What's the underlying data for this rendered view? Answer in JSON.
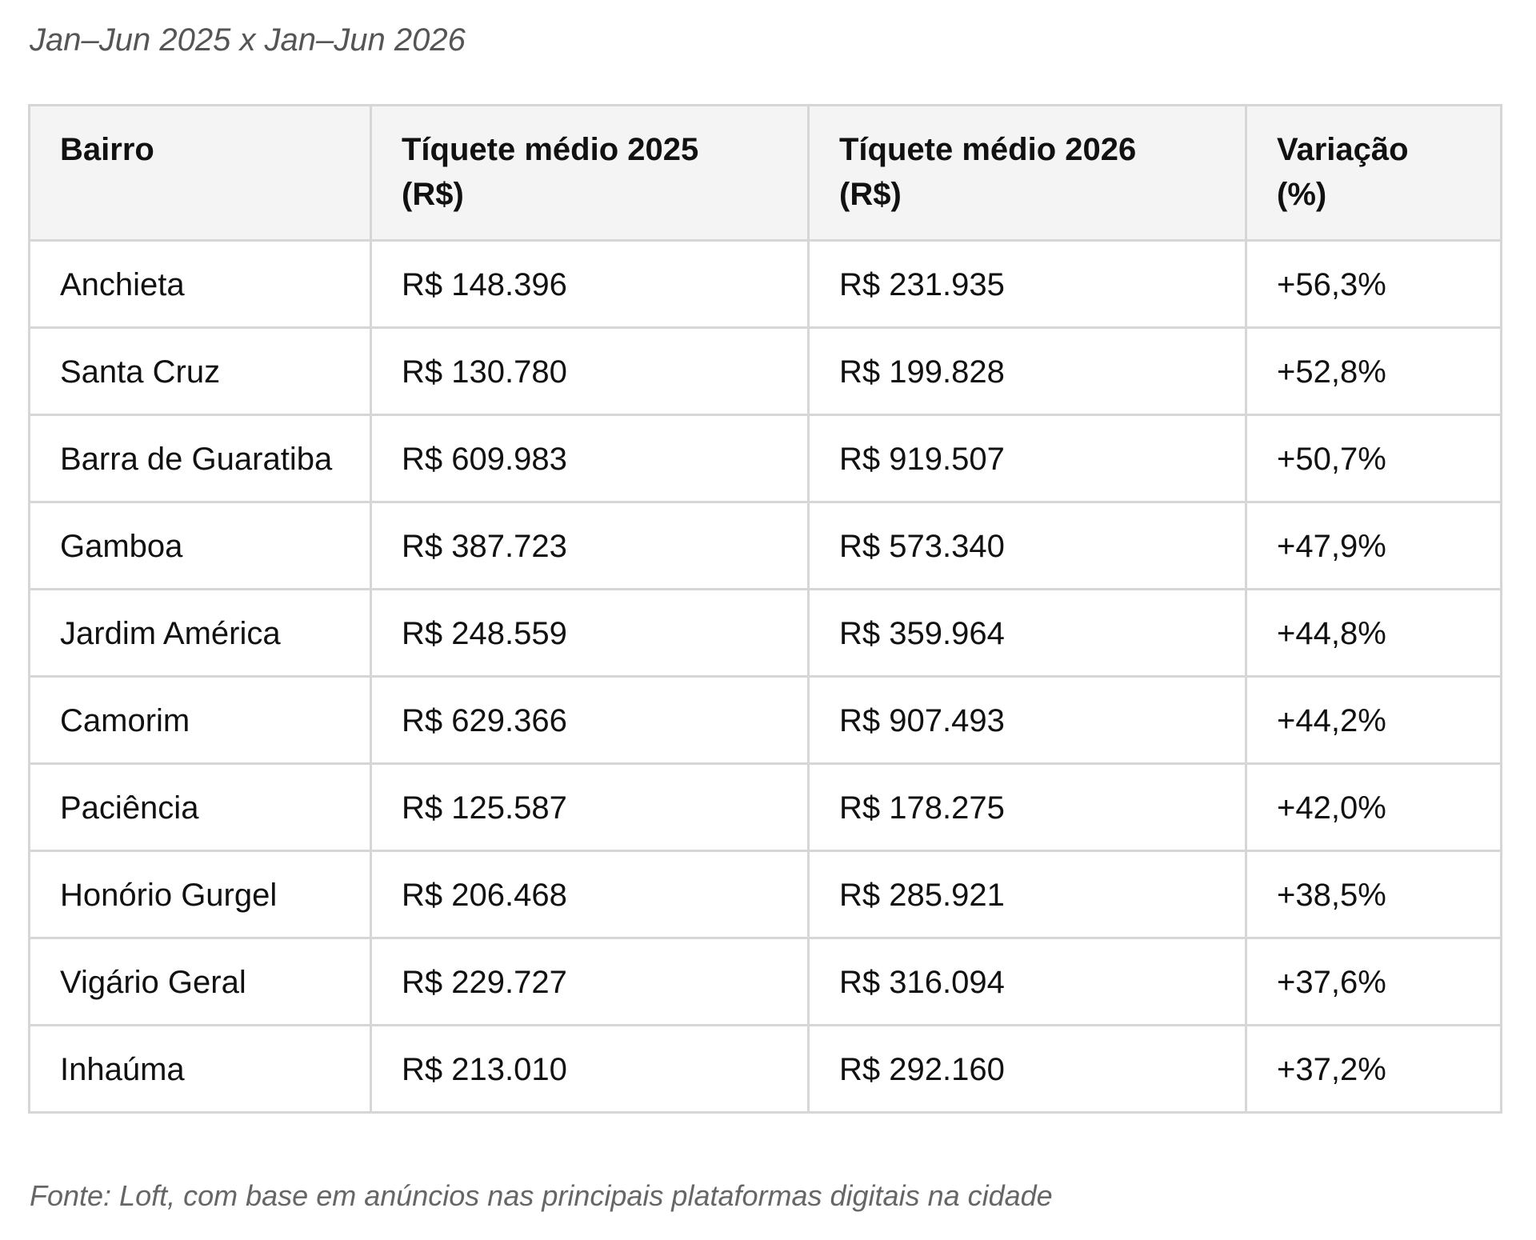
{
  "subtitle": "Jan–Jun 2025 x Jan–Jun 2026",
  "table": {
    "headers": {
      "bairro": "Bairro",
      "ticket_2025_line1": "Tíquete médio 2025",
      "ticket_2025_line2": "(R$)",
      "ticket_2026_line1": "Tíquete médio 2026",
      "ticket_2026_line2": "(R$)",
      "variacao_line1": "Variação",
      "variacao_line2": "(%)"
    },
    "rows": [
      {
        "bairro": "Anchieta",
        "t2025": "R$ 148.396",
        "t2026": "R$ 231.935",
        "var": "+56,3%"
      },
      {
        "bairro": "Santa Cruz",
        "t2025": "R$ 130.780",
        "t2026": "R$ 199.828",
        "var": "+52,8%"
      },
      {
        "bairro": "Barra de Guaratiba",
        "t2025": "R$ 609.983",
        "t2026": "R$ 919.507",
        "var": "+50,7%"
      },
      {
        "bairro": "Gamboa",
        "t2025": "R$ 387.723",
        "t2026": "R$ 573.340",
        "var": "+47,9%"
      },
      {
        "bairro": "Jardim América",
        "t2025": "R$ 248.559",
        "t2026": "R$ 359.964",
        "var": "+44,8%"
      },
      {
        "bairro": "Camorim",
        "t2025": "R$ 629.366",
        "t2026": "R$ 907.493",
        "var": "+44,2%"
      },
      {
        "bairro": "Paciência",
        "t2025": "R$ 125.587",
        "t2026": "R$ 178.275",
        "var": "+42,0%"
      },
      {
        "bairro": "Honório Gurgel",
        "t2025": "R$ 206.468",
        "t2026": "R$ 285.921",
        "var": "+38,5%"
      },
      {
        "bairro": "Vigário Geral",
        "t2025": "R$ 229.727",
        "t2026": "R$ 316.094",
        "var": "+37,6%"
      },
      {
        "bairro": "Inhaúma",
        "t2025": "R$ 213.010",
        "t2026": "R$ 292.160",
        "var": "+37,2%"
      }
    ]
  },
  "source": "Fonte: Loft, com base em anúncios nas principais plataformas digitais na cidade"
}
